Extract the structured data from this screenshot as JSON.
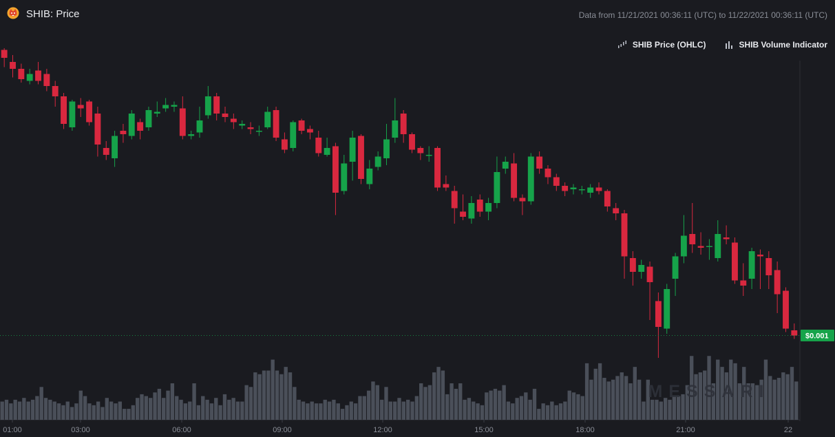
{
  "header": {
    "title": "SHIB: Price",
    "range_text": "Data from 11/21/2021 00:36:11 (UTC) to 11/22/2021 00:36:11 (UTC)"
  },
  "legend": {
    "items": [
      {
        "label": "SHIB Price (OHLC)",
        "icon": "candlestick-icon"
      },
      {
        "label": "SHIB Volume Indicator",
        "icon": "bar-chart-icon"
      }
    ]
  },
  "watermark": "MESSARI",
  "colors": {
    "background": "#1a1b20",
    "up": "#16a34a",
    "down": "#d9283f",
    "volume": "#4a4f59",
    "axis_text": "#8a8e97",
    "last_price": "#16a34a"
  },
  "chart_data": {
    "type": "candlestick",
    "x_tick_labels": [
      "01:00",
      "03:00",
      "06:00",
      "09:00",
      "12:00",
      "15:00",
      "18:00",
      "21:00",
      "22"
    ],
    "last_price_label": "$0.001",
    "volume_scale": [
      0,
      100
    ],
    "price_scale": [
      0,
      100
    ],
    "candles": [
      {
        "o": 45.5,
        "c": 43.2,
        "h": 46.0,
        "l": 40.5
      },
      {
        "o": 42.0,
        "c": 40.0,
        "h": 44.0,
        "l": 37.5
      },
      {
        "o": 40.0,
        "c": 37.0,
        "h": 41.5,
        "l": 36.0
      },
      {
        "o": 36.5,
        "c": 38.5,
        "h": 40.0,
        "l": 35.5
      },
      {
        "o": 39.5,
        "c": 36.5,
        "h": 42.0,
        "l": 35.5
      },
      {
        "o": 38.5,
        "c": 35.0,
        "h": 40.0,
        "l": 33.5
      },
      {
        "o": 35.0,
        "c": 32.0,
        "h": 36.5,
        "l": 29.0
      },
      {
        "o": 32.0,
        "c": 24.0,
        "h": 33.0,
        "l": 22.5
      },
      {
        "o": 23.0,
        "c": 30.5,
        "h": 31.0,
        "l": 22.0
      },
      {
        "o": 29.5,
        "c": 28.5,
        "h": 31.5,
        "l": 26.0
      },
      {
        "o": 30.5,
        "c": 24.5,
        "h": 31.0,
        "l": 23.5
      },
      {
        "o": 27.0,
        "c": 18.0,
        "h": 29.0,
        "l": 14.5
      },
      {
        "o": 17.0,
        "c": 15.0,
        "h": 19.0,
        "l": 13.5
      },
      {
        "o": 14.0,
        "c": 20.5,
        "h": 22.0,
        "l": 11.5
      },
      {
        "o": 22.0,
        "c": 21.0,
        "h": 24.0,
        "l": 18.5
      },
      {
        "o": 20.5,
        "c": 27.0,
        "h": 28.0,
        "l": 19.5
      },
      {
        "o": 24.5,
        "c": 22.0,
        "h": 25.5,
        "l": 19.5
      },
      {
        "o": 23.0,
        "c": 28.0,
        "h": 29.0,
        "l": 22.0
      },
      {
        "o": 27.0,
        "c": 27.5,
        "h": 30.5,
        "l": 26.0
      },
      {
        "o": 28.5,
        "c": 29.5,
        "h": 31.5,
        "l": 27.5
      },
      {
        "o": 29.0,
        "c": 29.5,
        "h": 30.5,
        "l": 27.5
      },
      {
        "o": 28.5,
        "c": 20.5,
        "h": 32.0,
        "l": 19.5
      },
      {
        "o": 20.5,
        "c": 21.0,
        "h": 22.0,
        "l": 19.5
      },
      {
        "o": 21.5,
        "c": 25.0,
        "h": 29.0,
        "l": 20.0
      },
      {
        "o": 26.5,
        "c": 32.0,
        "h": 35.0,
        "l": 25.5
      },
      {
        "o": 32.0,
        "c": 27.0,
        "h": 33.0,
        "l": 25.0
      },
      {
        "o": 27.0,
        "c": 26.0,
        "h": 29.0,
        "l": 24.5
      },
      {
        "o": 25.5,
        "c": 24.5,
        "h": 27.0,
        "l": 22.5
      },
      {
        "o": 23.5,
        "c": 24.0,
        "h": 25.0,
        "l": 22.5
      },
      {
        "o": 23.0,
        "c": 22.5,
        "h": 24.5,
        "l": 21.0
      },
      {
        "o": 22.0,
        "c": 22.0,
        "h": 23.5,
        "l": 20.5
      },
      {
        "o": 23.0,
        "c": 27.5,
        "h": 29.0,
        "l": 22.5
      },
      {
        "o": 28.0,
        "c": 20.0,
        "h": 29.0,
        "l": 19.0
      },
      {
        "o": 19.5,
        "c": 16.5,
        "h": 21.5,
        "l": 15.5
      },
      {
        "o": 17.0,
        "c": 24.5,
        "h": 25.0,
        "l": 16.0
      },
      {
        "o": 25.0,
        "c": 22.0,
        "h": 25.5,
        "l": 21.0
      },
      {
        "o": 22.5,
        "c": 21.5,
        "h": 23.5,
        "l": 19.5
      },
      {
        "o": 20.0,
        "c": 15.5,
        "h": 22.0,
        "l": 14.5
      },
      {
        "o": 15.0,
        "c": 17.0,
        "h": 20.0,
        "l": 14.5
      },
      {
        "o": 17.5,
        "c": 4.0,
        "h": 18.5,
        "l": -2.5
      },
      {
        "o": 4.5,
        "c": 12.5,
        "h": 15.0,
        "l": 3.5
      },
      {
        "o": 13.0,
        "c": 20.0,
        "h": 22.0,
        "l": 7.5
      },
      {
        "o": 20.5,
        "c": 8.0,
        "h": 21.0,
        "l": 6.5
      },
      {
        "o": 6.5,
        "c": 11.0,
        "h": 13.5,
        "l": 5.0
      },
      {
        "o": 11.5,
        "c": 14.5,
        "h": 16.0,
        "l": 10.5
      },
      {
        "o": 14.0,
        "c": 19.5,
        "h": 24.0,
        "l": 12.0
      },
      {
        "o": 20.0,
        "c": 25.0,
        "h": 31.5,
        "l": 18.5
      },
      {
        "o": 27.0,
        "c": 21.0,
        "h": 28.0,
        "l": 18.5
      },
      {
        "o": 21.0,
        "c": 16.5,
        "h": 21.5,
        "l": 15.5
      },
      {
        "o": 17.0,
        "c": 15.5,
        "h": 17.5,
        "l": 13.5
      },
      {
        "o": 15.0,
        "c": 15.0,
        "h": 17.5,
        "l": 13.0
      },
      {
        "o": 17.0,
        "c": 5.5,
        "h": 17.5,
        "l": 4.5
      },
      {
        "o": 6.5,
        "c": 5.5,
        "h": 9.0,
        "l": 4.5
      },
      {
        "o": 4.5,
        "c": -0.5,
        "h": 6.0,
        "l": -5.0
      },
      {
        "o": -1.5,
        "c": -3.0,
        "h": 3.5,
        "l": -4.0
      },
      {
        "o": -3.5,
        "c": 1.0,
        "h": 3.0,
        "l": -5.0
      },
      {
        "o": 2.0,
        "c": -1.5,
        "h": 3.5,
        "l": -3.0
      },
      {
        "o": -1.5,
        "c": 1.0,
        "h": 2.5,
        "l": -4.0
      },
      {
        "o": 1.0,
        "c": 10.0,
        "h": 14.5,
        "l": -0.5
      },
      {
        "o": 11.0,
        "c": 13.0,
        "h": 14.5,
        "l": 9.5
      },
      {
        "o": 12.5,
        "c": 2.5,
        "h": 15.5,
        "l": 1.5
      },
      {
        "o": 2.5,
        "c": 1.5,
        "h": 3.5,
        "l": -2.5
      },
      {
        "o": 1.5,
        "c": 14.5,
        "h": 15.5,
        "l": 0.5
      },
      {
        "o": 14.5,
        "c": 11.0,
        "h": 16.0,
        "l": 9.5
      },
      {
        "o": 11.0,
        "c": 8.5,
        "h": 12.0,
        "l": 6.5
      },
      {
        "o": 8.5,
        "c": 6.0,
        "h": 9.5,
        "l": 4.5
      },
      {
        "o": 6.0,
        "c": 4.5,
        "h": 7.0,
        "l": 3.0
      },
      {
        "o": 5.0,
        "c": 5.5,
        "h": 6.5,
        "l": 3.5
      },
      {
        "o": 5.0,
        "c": 5.0,
        "h": 6.0,
        "l": 3.5
      },
      {
        "o": 4.0,
        "c": 5.5,
        "h": 6.5,
        "l": 2.5
      },
      {
        "o": 5.5,
        "c": 4.5,
        "h": 7.0,
        "l": 3.5
      },
      {
        "o": 4.5,
        "c": 0.0,
        "h": 5.0,
        "l": -1.5
      },
      {
        "o": -0.5,
        "c": -2.0,
        "h": 1.0,
        "l": -4.0
      },
      {
        "o": -2.0,
        "c": -14.5,
        "h": -1.0,
        "l": -21.0
      },
      {
        "o": -15.0,
        "c": -19.0,
        "h": -13.0,
        "l": -23.0
      },
      {
        "o": -19.0,
        "c": -17.0,
        "h": -15.5,
        "l": -21.0
      },
      {
        "o": -17.5,
        "c": -22.0,
        "h": -16.0,
        "l": -33.0
      },
      {
        "o": -27.5,
        "c": -35.0,
        "h": -25.0,
        "l": -44.0
      },
      {
        "o": -35.5,
        "c": -24.0,
        "h": -22.5,
        "l": -37.0
      },
      {
        "o": -21.0,
        "c": -14.5,
        "h": -13.5,
        "l": -26.0
      },
      {
        "o": -14.5,
        "c": -8.5,
        "h": -2.5,
        "l": -16.5
      },
      {
        "o": -8.0,
        "c": -11.0,
        "h": 1.0,
        "l": -13.5
      },
      {
        "o": -11.5,
        "c": -12.0,
        "h": -7.5,
        "l": -14.0
      },
      {
        "o": -11.5,
        "c": -11.5,
        "h": -9.5,
        "l": -15.5
      },
      {
        "o": -15.0,
        "c": -8.0,
        "h": -4.0,
        "l": -16.0
      },
      {
        "o": -9.0,
        "c": -9.5,
        "h": -5.5,
        "l": -11.0
      },
      {
        "o": -10.5,
        "c": -21.5,
        "h": -9.0,
        "l": -22.5
      },
      {
        "o": -21.5,
        "c": -23.0,
        "h": -16.5,
        "l": -26.0
      },
      {
        "o": -21.0,
        "c": -13.0,
        "h": -12.0,
        "l": -24.0
      },
      {
        "o": -14.0,
        "c": -14.5,
        "h": -12.5,
        "l": -24.0
      },
      {
        "o": -15.0,
        "c": -20.0,
        "h": -13.0,
        "l": -24.0
      },
      {
        "o": -18.5,
        "c": -25.5,
        "h": -16.0,
        "l": -31.0
      },
      {
        "o": -24.5,
        "c": -35.5,
        "h": -23.5,
        "l": -36.5
      },
      {
        "o": -36.0,
        "c": -37.5,
        "h": -34.0,
        "l": -38.5
      }
    ],
    "volume": [
      10,
      11,
      9,
      11,
      10,
      12,
      10,
      11,
      13,
      18,
      12,
      11,
      10,
      9,
      8,
      10,
      7,
      9,
      16,
      13,
      9,
      8,
      10,
      7,
      12,
      10,
      9,
      10,
      6,
      6,
      8,
      12,
      14,
      13,
      12,
      15,
      17,
      12,
      16,
      20,
      13,
      11,
      9,
      10,
      20,
      8,
      13,
      11,
      9,
      12,
      8,
      14,
      11,
      12,
      10,
      10,
      19,
      18,
      26,
      25,
      27,
      27,
      33,
      27,
      25,
      29,
      26,
      18,
      11,
      10,
      9,
      10,
      9,
      9,
      11,
      10,
      11,
      9,
      6,
      8,
      10,
      9,
      13,
      13,
      16,
      21,
      19,
      11,
      18,
      10,
      10,
      12,
      10,
      11,
      10,
      13,
      20,
      18,
      19,
      26,
      29,
      27,
      14,
      20,
      17,
      20,
      11,
      12,
      10,
      9,
      8,
      15,
      16,
      17,
      16,
      19,
      10,
      9,
      12,
      13,
      15,
      11,
      17,
      6,
      9,
      8,
      10,
      8,
      9,
      10,
      16,
      15,
      14,
      13,
      31,
      22,
      28,
      31,
      23,
      21,
      22,
      24,
      26,
      24,
      20,
      29,
      22,
      10,
      22,
      11,
      11,
      10,
      12,
      11,
      13,
      13,
      14,
      19,
      35,
      25,
      26,
      27,
      35,
      20,
      33,
      29,
      26,
      33,
      31,
      20,
      29,
      20,
      20,
      19,
      22,
      33,
      24,
      22,
      23,
      26,
      25,
      29,
      21
    ]
  }
}
